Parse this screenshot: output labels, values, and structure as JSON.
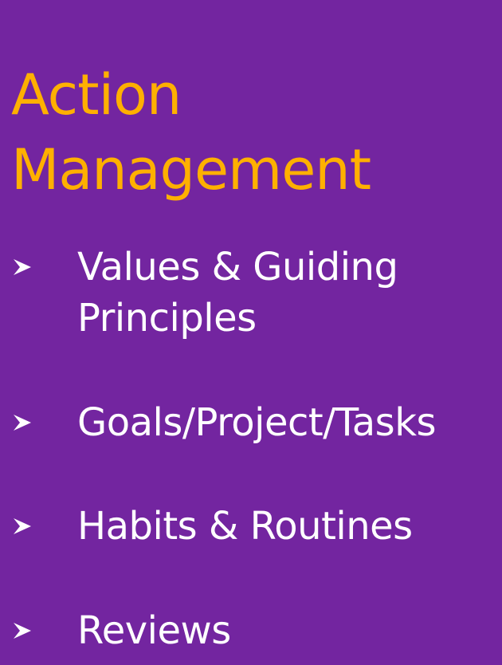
{
  "slide": {
    "title_line1": "Action",
    "title_line2": "Management",
    "bullets": [
      {
        "line1": "Values & Guiding",
        "line2": "Principles"
      },
      {
        "line1": "Goals/Project/Tasks"
      },
      {
        "line1": "Habits & Routines"
      },
      {
        "line1": "Reviews"
      }
    ],
    "colors": {
      "background": "#7325a0",
      "title": "#ffb000",
      "text": "#ffffff"
    },
    "bullet_icon": "arrowhead-bullet-icon"
  }
}
